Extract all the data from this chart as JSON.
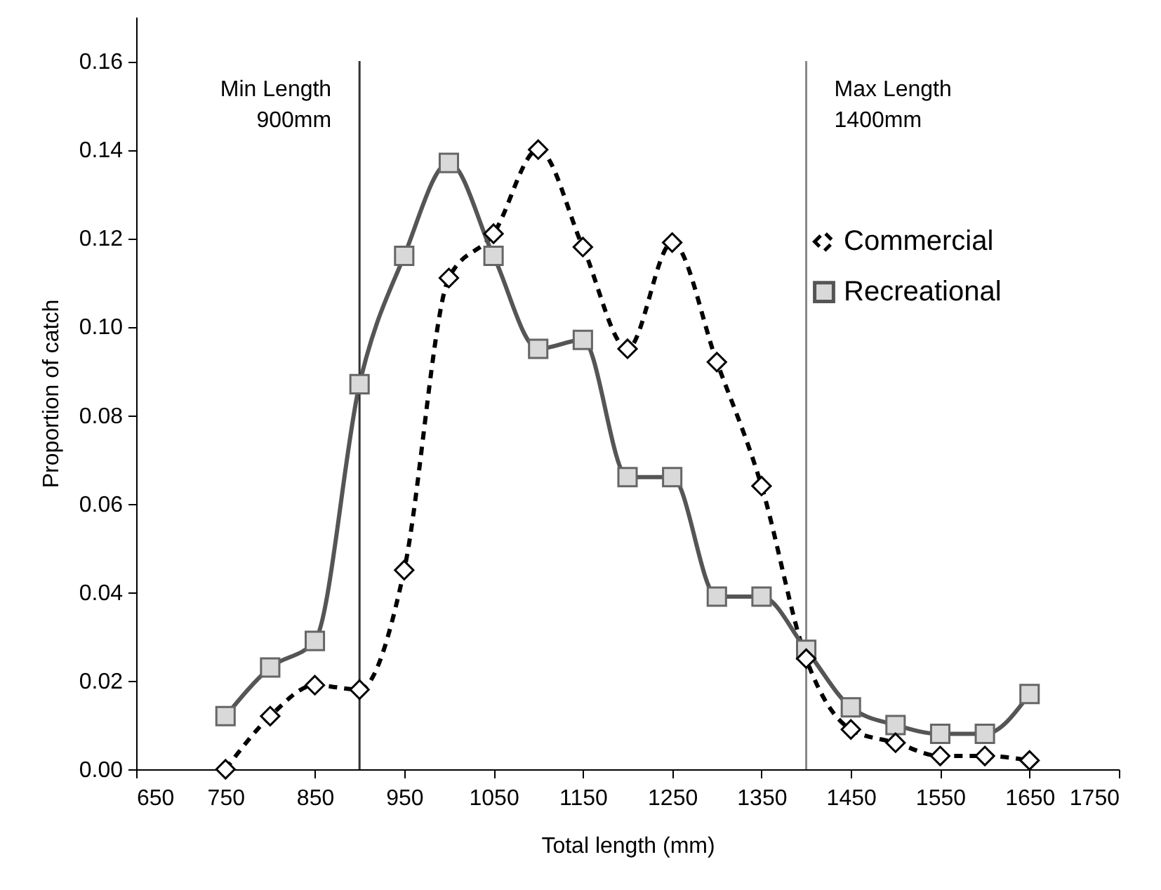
{
  "chart_data": {
    "type": "line",
    "xlabel": "Total length (mm)",
    "ylabel": "Proportion of catch",
    "x": [
      750,
      800,
      850,
      900,
      950,
      1000,
      1050,
      1100,
      1150,
      1200,
      1250,
      1300,
      1350,
      1400,
      1450,
      1500,
      1550,
      1600,
      1650
    ],
    "series": [
      {
        "name": "Commercial",
        "color": "#000000",
        "marker": "diamond",
        "line_style": "dashed",
        "values": [
          0,
          0.012,
          0.019,
          0.018,
          0.045,
          0.111,
          0.121,
          0.14,
          0.118,
          0.095,
          0.119,
          0.092,
          0.064,
          0.025,
          0.009,
          0.006,
          0.003,
          0.003,
          0.002
        ]
      },
      {
        "name": "Recreational",
        "color": "#555555",
        "marker": "square",
        "line_style": "solid",
        "values": [
          0.012,
          0.023,
          0.029,
          0.087,
          0.116,
          0.137,
          0.116,
          0.095,
          0.097,
          0.066,
          0.066,
          0.039,
          0.039,
          0.027,
          0.014,
          0.01,
          0.008,
          0.008,
          0.017
        ]
      }
    ],
    "xlim": [
      650,
      1750
    ],
    "xticks": [
      650,
      750,
      850,
      950,
      1050,
      1150,
      1250,
      1350,
      1450,
      1550,
      1650,
      1750
    ],
    "ylim": [
      0,
      0.17
    ],
    "yticks": [
      {
        "value": 0,
        "label": "0.00"
      },
      {
        "value": 0.02,
        "label": "0.02"
      },
      {
        "value": 0.04,
        "label": "0.04"
      },
      {
        "value": 0.06,
        "label": "0.06"
      },
      {
        "value": 0.08,
        "label": "0.08"
      },
      {
        "value": 0.1,
        "label": "0.10"
      },
      {
        "value": 0.12,
        "label": "0.12"
      },
      {
        "value": 0.14,
        "label": "0.14"
      },
      {
        "value": 0.16,
        "label": "0.16"
      }
    ],
    "ref_lines": [
      {
        "axis": "x",
        "value": 900,
        "label": "Min Length\n900mm",
        "color": "#333333"
      },
      {
        "axis": "x",
        "value": 1400,
        "label": "Max Length\n1400mm",
        "color": "#888888"
      }
    ],
    "grid": false,
    "legend": "right"
  }
}
